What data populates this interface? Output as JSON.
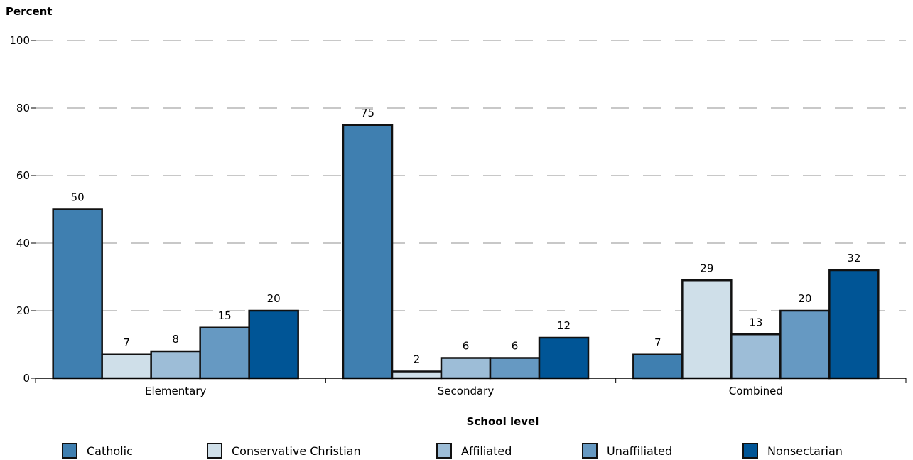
{
  "chart_data": {
    "type": "bar",
    "ylabel": "Percent",
    "xlabel": "School level",
    "ylim": [
      0,
      100
    ],
    "yticks": [
      0,
      20,
      40,
      60,
      80,
      100
    ],
    "grid": "dashed horizontal",
    "legend_position": "bottom",
    "categories": [
      "Elementary",
      "Secondary",
      "Combined"
    ],
    "series": [
      {
        "name": "Catholic",
        "values": [
          50,
          75,
          7
        ],
        "color": "#3f7fb0"
      },
      {
        "name": "Conservative Christian",
        "values": [
          7,
          2,
          29
        ],
        "color": "#cfdfe9"
      },
      {
        "name": "Affiliated",
        "values": [
          8,
          6,
          13
        ],
        "color": "#9dbdd7"
      },
      {
        "name": "Unaffiliated",
        "values": [
          15,
          6,
          20
        ],
        "color": "#6699c2"
      },
      {
        "name": "Nonsectarian",
        "values": [
          20,
          12,
          32
        ],
        "color": "#005596"
      }
    ]
  }
}
